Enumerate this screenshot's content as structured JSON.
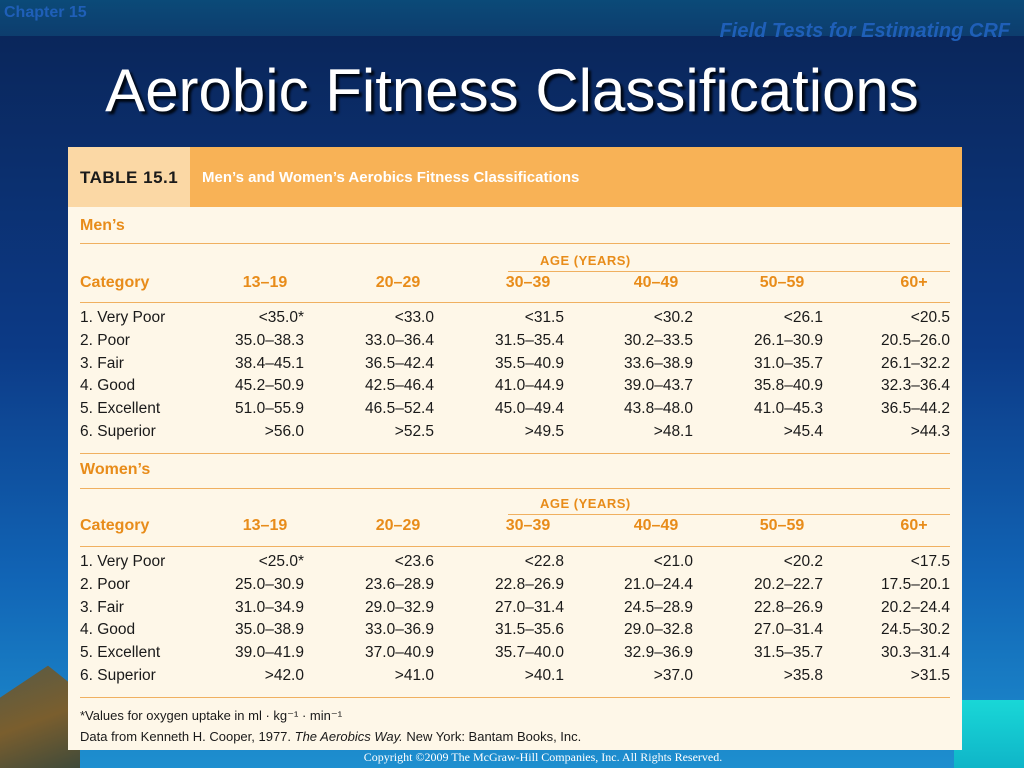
{
  "header": {
    "chapter": "Chapter 15",
    "section": "Field Tests for Estimating CRF"
  },
  "slide": {
    "title": "Aerobic Fitness Classifications"
  },
  "table": {
    "number": "TABLE 15.1",
    "title": "Men’s and Women’s Aerobics Fitness Classifications",
    "age_label": "AGE (YEARS)",
    "columns": [
      "Category",
      "13–19",
      "20–29",
      "30–39",
      "40–49",
      "50–59",
      "60+"
    ],
    "men": {
      "label": "Men’s",
      "rows": [
        [
          "1. Very Poor",
          "<35.0*",
          "<33.0",
          "<31.5",
          "<30.2",
          "<26.1",
          "<20.5"
        ],
        [
          "2. Poor",
          "35.0–38.3",
          "33.0–36.4",
          "31.5–35.4",
          "30.2–33.5",
          "26.1–30.9",
          "20.5–26.0"
        ],
        [
          "3. Fair",
          "38.4–45.1",
          "36.5–42.4",
          "35.5–40.9",
          "33.6–38.9",
          "31.0–35.7",
          "26.1–32.2"
        ],
        [
          "4. Good",
          "45.2–50.9",
          "42.5–46.4",
          "41.0–44.9",
          "39.0–43.7",
          "35.8–40.9",
          "32.3–36.4"
        ],
        [
          "5. Excellent",
          "51.0–55.9",
          "46.5–52.4",
          "45.0–49.4",
          "43.8–48.0",
          "41.0–45.3",
          "36.5–44.2"
        ],
        [
          "6. Superior",
          ">56.0",
          ">52.5",
          ">49.5",
          ">48.1",
          ">45.4",
          ">44.3"
        ]
      ]
    },
    "women": {
      "label": "Women’s",
      "rows": [
        [
          "1. Very Poor",
          "<25.0*",
          "<23.6",
          "<22.8",
          "<21.0",
          "<20.2",
          "<17.5"
        ],
        [
          "2. Poor",
          "25.0–30.9",
          "23.6–28.9",
          "22.8–26.9",
          "21.0–24.4",
          "20.2–22.7",
          "17.5–20.1"
        ],
        [
          "3. Fair",
          "31.0–34.9",
          "29.0–32.9",
          "27.0–31.4",
          "24.5–28.9",
          "22.8–26.9",
          "20.2–24.4"
        ],
        [
          "4. Good",
          "35.0–38.9",
          "33.0–36.9",
          "31.5–35.6",
          "29.0–32.8",
          "27.0–31.4",
          "24.5–30.2"
        ],
        [
          "5. Excellent",
          "39.0–41.9",
          "37.0–40.9",
          "35.7–40.0",
          "32.9–36.9",
          "31.5–35.7",
          "30.3–31.4"
        ],
        [
          "6. Superior",
          ">42.0",
          ">41.0",
          ">40.1",
          ">37.0",
          ">35.8",
          ">31.5"
        ]
      ]
    },
    "footnote_1": "*Values for oxygen uptake in ml · kg⁻¹ · min⁻¹",
    "footnote_2_pre": "Data from Kenneth H. Cooper, 1977. ",
    "footnote_2_italic": "The Aerobics Way.",
    "footnote_2_post": " New York: Bantam Books, Inc."
  },
  "footer": {
    "copyright": "Copyright ©2009 The McGraw-Hill Companies, Inc. All Rights Reserved."
  }
}
